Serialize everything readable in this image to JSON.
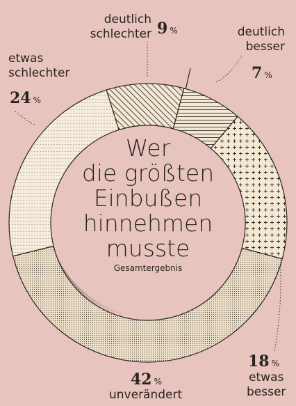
{
  "chart_data": {
    "type": "donut",
    "title_lines": [
      "Wer",
      "die größten",
      "Einbußen",
      "hinnehmen",
      "musste"
    ],
    "subtitle": "Gesamtergebnis",
    "categories": [
      "deutlich besser",
      "etwas besser",
      "unverändert",
      "etwas schlechter",
      "deutlich schlechter"
    ],
    "values": [
      7,
      18,
      42,
      24,
      9
    ],
    "unit": "%",
    "color": "#f3e8d4"
  }
}
